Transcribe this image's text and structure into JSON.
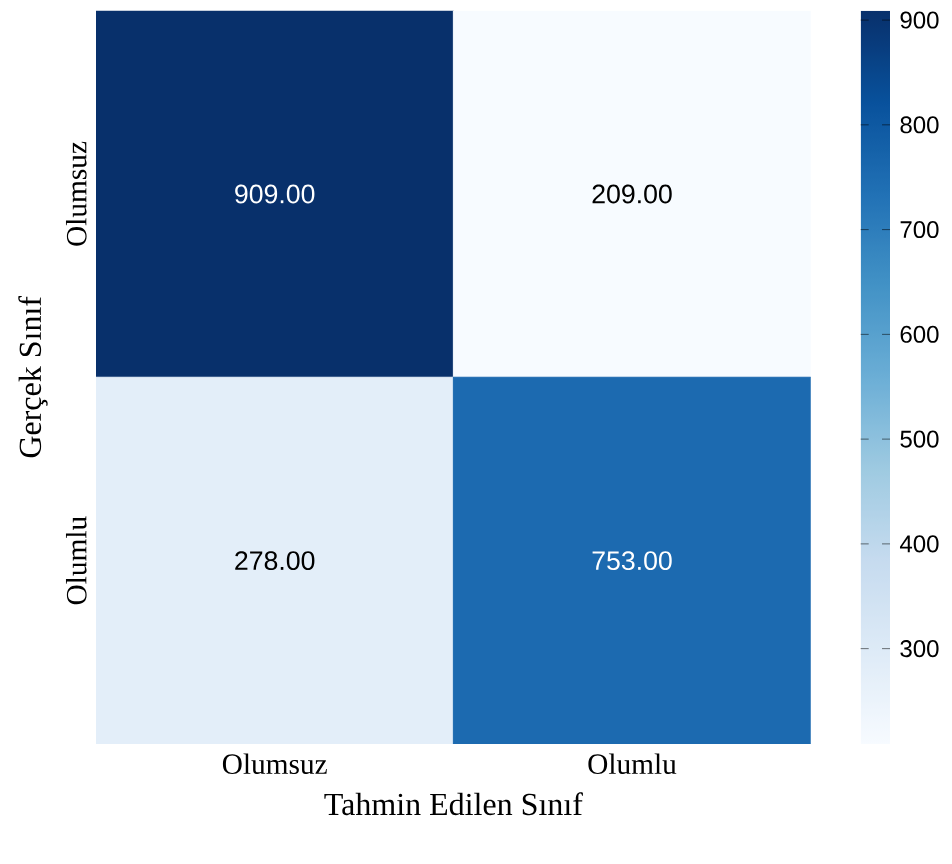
{
  "chart_data": {
    "type": "heatmap",
    "xlabel": "Tahmin Edilen Sınıf",
    "ylabel": "Gerçek Sınıf",
    "categories": [
      "Olumsuz",
      "Olumlu"
    ],
    "y_categories": [
      "Olumsuz",
      "Olumlu"
    ],
    "cells": [
      [
        909,
        209
      ],
      [
        278,
        753
      ]
    ],
    "cell_labels": [
      [
        "909.00",
        "209.00"
      ],
      [
        "278.00",
        "753.00"
      ]
    ],
    "clim": [
      209,
      909
    ],
    "cticks": [
      300,
      400,
      500,
      600,
      700,
      800,
      900
    ]
  }
}
